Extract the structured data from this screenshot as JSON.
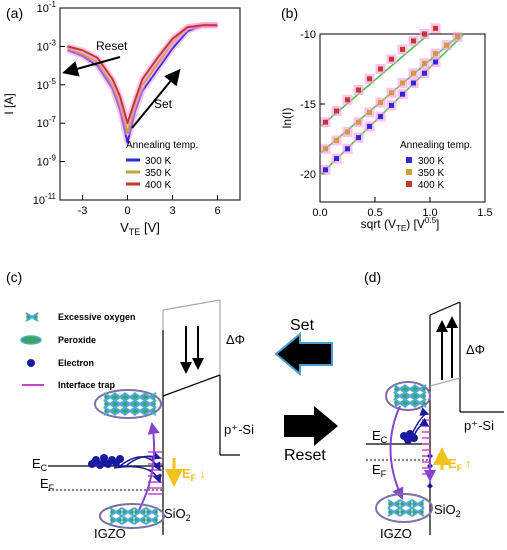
{
  "panel_labels": {
    "a": "(a)",
    "b": "(b)",
    "c": "(c)",
    "d": "(d)"
  },
  "colors": {
    "c300": "#2b2bd6",
    "c350": "#c8a13a",
    "c400": "#c23a2e",
    "fit": "#3fbf3f",
    "fill_pink": "#ff99e6",
    "trap": "#cc44cc",
    "oxygen": "#4aa8d8",
    "electron": "#1a1aa0",
    "ef_arrow": "#f2c21b",
    "big_arrow_fill": "#000000",
    "big_arrow_edge": "#4a9fd0"
  },
  "chart_data": [
    {
      "type": "line",
      "panel": "(a)",
      "xlabel": "V",
      "xlabel_sub": "TE",
      "xunit": "[V]",
      "ylabel": "I [A]",
      "xlim": [
        -4.5,
        7.5
      ],
      "ylog": true,
      "ylim_exp": [
        -11,
        -1
      ],
      "xticks": [
        "-3",
        "0",
        "3",
        "6"
      ],
      "yticks": [
        {
          "base": "10",
          "exp": "-1"
        },
        {
          "base": "10",
          "exp": "-3"
        },
        {
          "base": "10",
          "exp": "-5"
        },
        {
          "base": "10",
          "exp": "-7"
        },
        {
          "base": "10",
          "exp": "-9"
        },
        {
          "base": "10",
          "exp": "-11"
        }
      ],
      "legend_title": "Annealing temp.",
      "annotations": {
        "reset": "Reset",
        "set": "Set"
      },
      "series": [
        {
          "name": "300 K",
          "x": [
            -4,
            -3,
            -2,
            -1,
            -0.5,
            0,
            0.5,
            1,
            2,
            3,
            4,
            5,
            6
          ],
          "log10_y": [
            -3.2,
            -3.5,
            -4.0,
            -5.2,
            -6.3,
            -8.0,
            -6.4,
            -5.3,
            -4.2,
            -3.1,
            -2.2,
            -1.9,
            -1.9
          ]
        },
        {
          "name": "350 K",
          "x": [
            -4,
            -3,
            -2,
            -1,
            -0.5,
            0,
            0.5,
            1,
            2,
            3,
            4,
            5,
            6
          ],
          "log10_y": [
            -3.1,
            -3.4,
            -3.8,
            -5.0,
            -6.0,
            -7.5,
            -6.1,
            -5.0,
            -3.9,
            -2.8,
            -2.0,
            -1.9,
            -1.9
          ]
        },
        {
          "name": "400 K",
          "x": [
            -4,
            -3,
            -2,
            -1,
            -0.5,
            0,
            0.5,
            1,
            2,
            3,
            4,
            5,
            6
          ],
          "log10_y": [
            -3.0,
            -3.2,
            -3.6,
            -4.7,
            -5.6,
            -7.0,
            -5.8,
            -4.7,
            -3.6,
            -2.6,
            -2.0,
            -1.9,
            -1.9
          ]
        }
      ]
    },
    {
      "type": "scatter",
      "panel": "(b)",
      "xlabel": "sqrt (V",
      "xlabel_sub": "TE",
      "xlabel_tail": ") [V",
      "xlabel_sup": "0.5",
      "xlabel_end": "]",
      "ylabel": "ln(I)",
      "xlim": [
        0,
        1.5
      ],
      "ylim": [
        -22,
        -10
      ],
      "xticks": [
        "0.0",
        "0.5",
        "1.0",
        "1.5"
      ],
      "yticks": [
        "-10",
        "-15",
        "-20"
      ],
      "legend_title": "Annealing temp.",
      "series": [
        {
          "name": "300 K",
          "x": [
            0.05,
            0.15,
            0.25,
            0.35,
            0.45,
            0.55,
            0.65,
            0.75,
            0.85,
            0.95,
            1.05
          ],
          "y": [
            -19.7,
            -18.9,
            -18.2,
            -17.4,
            -16.6,
            -15.9,
            -15.1,
            -14.3,
            -13.5,
            -12.8,
            -12.0
          ]
        },
        {
          "name": "350 K",
          "x": [
            0.05,
            0.15,
            0.25,
            0.35,
            0.45,
            0.55,
            0.65,
            0.75,
            0.85,
            0.95,
            1.05,
            1.15,
            1.25
          ],
          "y": [
            -18.2,
            -17.6,
            -17.0,
            -16.3,
            -15.6,
            -14.9,
            -14.2,
            -13.5,
            -12.8,
            -12.1,
            -11.4,
            -10.8,
            -10.2
          ]
        },
        {
          "name": "400 K",
          "x": [
            0.05,
            0.15,
            0.25,
            0.35,
            0.45,
            0.55,
            0.65,
            0.75,
            0.85,
            0.95,
            1.05
          ],
          "y": [
            -16.3,
            -15.5,
            -14.7,
            -14.0,
            -13.2,
            -12.5,
            -11.8,
            -11.1,
            -10.5,
            -10.0,
            -9.6
          ]
        }
      ]
    }
  ],
  "diagram_c": {
    "legend": [
      "Excessive oxygen",
      "Peroxide",
      "Electron",
      "Interface trap"
    ],
    "delta_phi": "ΔΦ",
    "ec": "E",
    "ec_sub": "C",
    "ef": "E",
    "ef_sub": "F",
    "ef_arrow_label": "E",
    "ef_arrow_sub": "F",
    "ef_arrow_sym": "↓",
    "psi": "p⁺-Si",
    "sio2": "SiO",
    "sio2_sub": "2",
    "igzo": "IGZO"
  },
  "middle": {
    "set": "Set",
    "reset": "Reset"
  },
  "diagram_d": {
    "delta_phi": "ΔΦ",
    "ec": "E",
    "ec_sub": "C",
    "ef": "E",
    "ef_sub": "F",
    "ef_arrow_label": "E",
    "ef_arrow_sub": "F",
    "ef_arrow_sym": "↑",
    "psi": "p⁺-Si",
    "sio2": "SiO",
    "sio2_sub": "2",
    "igzo": "IGZO"
  }
}
